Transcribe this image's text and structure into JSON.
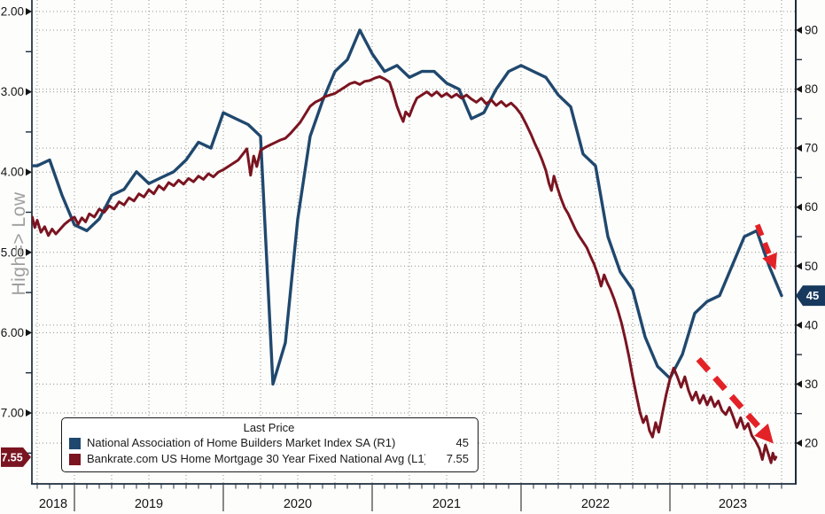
{
  "colors": {
    "nahb_line": "#20486e",
    "mortgage_line": "#7a1420",
    "arrow_red": "#e32227",
    "grid": "#8f8f8f",
    "axis_spine": "#1d2c3d",
    "tick_text": "#141414",
    "axis_title_gray": "#9e9e9e",
    "badge_nahb_bg": "#17395e",
    "badge_mortgage_bg": "#7a1420",
    "badge_text": "#ffffff",
    "background": "#fdfdfb"
  },
  "chart_data": {
    "type": "line",
    "title": "",
    "legend": {
      "title": "Last Price",
      "items": [
        {
          "label": "National Association of Home Builders Market Index SA  (R1)",
          "value": "45",
          "color": "#20486e"
        },
        {
          "label": "Bankrate.com US Home Mortgage 30 Year Fixed National Avg  (L1)",
          "value": "7.55",
          "color": "#7a1420"
        }
      ]
    },
    "x_axis": {
      "year_labels": [
        "2018",
        "2019",
        "2020",
        "2021",
        "2022",
        "2023"
      ],
      "visible_span": "Sep 2018 - Oct 2023"
    },
    "left_axis": {
      "title": "High=> Low",
      "inverted_display": true,
      "ticks": [
        "2.00",
        "3.00",
        "4.00",
        "5.00",
        "6.00",
        "7.00"
      ],
      "tick_values": [
        2,
        3,
        4,
        5,
        6,
        7
      ],
      "minor_tick_step": 0.5,
      "range": [
        1.95,
        7.9
      ],
      "last_price_badge": "7.55"
    },
    "right_axis": {
      "ticks": [
        90,
        80,
        70,
        60,
        50,
        40,
        30,
        20
      ],
      "minor_tick_step": 5,
      "range": [
        4,
        94
      ],
      "last_price_badge": "45"
    },
    "t_encoding": "t = months since 2018-01-01 (12.0 = 2019-01-01); monthly survey readings are plotted at the following month boundary",
    "series": [
      {
        "name": "National Association of Home Builders Market Index SA",
        "axis": "R1",
        "frequency": "monthly",
        "first_reading": "2018-08",
        "first_plot_t": 8,
        "last_price": 45,
        "values": [
          67,
          67,
          68,
          62,
          57,
          56,
          58,
          62,
          63,
          66,
          64,
          65,
          66,
          68,
          71,
          70,
          76,
          75,
          74,
          72,
          30,
          37,
          58,
          72,
          78,
          83,
          85,
          90,
          86,
          83,
          84,
          82,
          83,
          83,
          81,
          80,
          75,
          76,
          80,
          83,
          84,
          83,
          82,
          79,
          77,
          69,
          67,
          55,
          49,
          46,
          38,
          33,
          31,
          35,
          42,
          44,
          45,
          50,
          55,
          56,
          50,
          45
        ]
      },
      {
        "name": "Bankrate.com US Home Mortgage 30 Year Fixed National Avg",
        "axis": "L1",
        "frequency": "sub-monthly",
        "last_price": 7.55,
        "points": [
          [
            8.6,
            4.56
          ],
          [
            8.8,
            4.69
          ],
          [
            9.0,
            4.6
          ],
          [
            9.3,
            4.75
          ],
          [
            9.6,
            4.68
          ],
          [
            9.9,
            4.79
          ],
          [
            10.2,
            4.71
          ],
          [
            10.5,
            4.77
          ],
          [
            10.8,
            4.72
          ],
          [
            11.2,
            4.65
          ],
          [
            11.6,
            4.6
          ],
          [
            12.0,
            4.56
          ],
          [
            12.3,
            4.65
          ],
          [
            12.6,
            4.57
          ],
          [
            12.9,
            4.62
          ],
          [
            13.2,
            4.52
          ],
          [
            13.6,
            4.56
          ],
          [
            14.0,
            4.46
          ],
          [
            14.4,
            4.5
          ],
          [
            14.8,
            4.42
          ],
          [
            15.2,
            4.46
          ],
          [
            15.6,
            4.37
          ],
          [
            16.0,
            4.41
          ],
          [
            16.4,
            4.32
          ],
          [
            16.8,
            4.36
          ],
          [
            17.2,
            4.27
          ],
          [
            17.6,
            4.31
          ],
          [
            18.0,
            4.22
          ],
          [
            18.4,
            4.27
          ],
          [
            18.8,
            4.17
          ],
          [
            19.2,
            4.22
          ],
          [
            19.6,
            4.13
          ],
          [
            20.0,
            4.17
          ],
          [
            20.4,
            4.1
          ],
          [
            20.8,
            4.15
          ],
          [
            21.2,
            4.08
          ],
          [
            21.6,
            4.12
          ],
          [
            22.0,
            4.05
          ],
          [
            22.4,
            4.09
          ],
          [
            22.8,
            4.02
          ],
          [
            23.2,
            4.06
          ],
          [
            23.6,
            4.0
          ],
          [
            24.0,
            3.97
          ],
          [
            24.4,
            3.93
          ],
          [
            24.8,
            3.89
          ],
          [
            25.2,
            3.85
          ],
          [
            25.6,
            3.77
          ],
          [
            25.9,
            3.71
          ],
          [
            26.2,
            4.04
          ],
          [
            26.45,
            3.8
          ],
          [
            26.7,
            3.93
          ],
          [
            27.0,
            3.73
          ],
          [
            27.4,
            3.69
          ],
          [
            27.8,
            3.66
          ],
          [
            28.2,
            3.63
          ],
          [
            28.6,
            3.6
          ],
          [
            29.0,
            3.58
          ],
          [
            29.4,
            3.52
          ],
          [
            29.8,
            3.45
          ],
          [
            30.2,
            3.38
          ],
          [
            30.6,
            3.28
          ],
          [
            31.0,
            3.18
          ],
          [
            31.4,
            3.13
          ],
          [
            31.8,
            3.1
          ],
          [
            32.2,
            3.06
          ],
          [
            32.6,
            3.04
          ],
          [
            33.0,
            3.02
          ],
          [
            33.4,
            2.98
          ],
          [
            33.8,
            2.94
          ],
          [
            34.2,
            2.9
          ],
          [
            34.6,
            2.88
          ],
          [
            35.0,
            2.91
          ],
          [
            35.4,
            2.87
          ],
          [
            35.8,
            2.86
          ],
          [
            36.2,
            2.83
          ],
          [
            36.6,
            2.81
          ],
          [
            37.0,
            2.84
          ],
          [
            37.4,
            2.88
          ],
          [
            37.7,
            3.02
          ],
          [
            38.0,
            3.18
          ],
          [
            38.3,
            3.3
          ],
          [
            38.5,
            3.37
          ],
          [
            38.7,
            3.25
          ],
          [
            39.0,
            3.3
          ],
          [
            39.3,
            3.18
          ],
          [
            39.6,
            3.08
          ],
          [
            40.0,
            3.04
          ],
          [
            40.4,
            3.0
          ],
          [
            40.8,
            3.05
          ],
          [
            41.2,
            3.0
          ],
          [
            41.6,
            3.06
          ],
          [
            42.0,
            3.02
          ],
          [
            42.4,
            3.07
          ],
          [
            42.8,
            3.03
          ],
          [
            43.2,
            3.08
          ],
          [
            43.6,
            3.04
          ],
          [
            44.0,
            3.09
          ],
          [
            44.4,
            3.13
          ],
          [
            44.8,
            3.08
          ],
          [
            45.2,
            3.15
          ],
          [
            45.6,
            3.1
          ],
          [
            46.0,
            3.17
          ],
          [
            46.4,
            3.12
          ],
          [
            46.8,
            3.18
          ],
          [
            47.2,
            3.14
          ],
          [
            47.6,
            3.2
          ],
          [
            48.0,
            3.28
          ],
          [
            48.4,
            3.4
          ],
          [
            48.8,
            3.53
          ],
          [
            49.1,
            3.64
          ],
          [
            49.4,
            3.74
          ],
          [
            49.7,
            3.85
          ],
          [
            50.0,
            3.98
          ],
          [
            50.25,
            4.14
          ],
          [
            50.45,
            4.23
          ],
          [
            50.65,
            4.05
          ],
          [
            50.9,
            4.18
          ],
          [
            51.2,
            4.32
          ],
          [
            51.5,
            4.44
          ],
          [
            51.8,
            4.52
          ],
          [
            52.1,
            4.62
          ],
          [
            52.4,
            4.72
          ],
          [
            52.7,
            4.8
          ],
          [
            53.0,
            4.87
          ],
          [
            53.3,
            4.94
          ],
          [
            53.6,
            5.05
          ],
          [
            53.9,
            5.15
          ],
          [
            54.2,
            5.28
          ],
          [
            54.45,
            5.42
          ],
          [
            54.7,
            5.28
          ],
          [
            54.95,
            5.38
          ],
          [
            55.2,
            5.46
          ],
          [
            55.5,
            5.58
          ],
          [
            55.8,
            5.72
          ],
          [
            56.1,
            5.88
          ],
          [
            56.4,
            6.08
          ],
          [
            56.7,
            6.3
          ],
          [
            57.0,
            6.55
          ],
          [
            57.3,
            6.78
          ],
          [
            57.6,
            7.0
          ],
          [
            57.85,
            7.12
          ],
          [
            58.1,
            7.04
          ],
          [
            58.35,
            7.22
          ],
          [
            58.6,
            7.3
          ],
          [
            58.85,
            7.12
          ],
          [
            59.1,
            7.24
          ],
          [
            59.4,
            7.0
          ],
          [
            59.7,
            6.77
          ],
          [
            60.0,
            6.58
          ],
          [
            60.3,
            6.44
          ],
          [
            60.6,
            6.55
          ],
          [
            60.9,
            6.68
          ],
          [
            61.2,
            6.55
          ],
          [
            61.5,
            6.72
          ],
          [
            61.8,
            6.84
          ],
          [
            62.1,
            6.74
          ],
          [
            62.4,
            6.88
          ],
          [
            62.7,
            6.78
          ],
          [
            63.0,
            6.9
          ],
          [
            63.3,
            6.8
          ],
          [
            63.6,
            6.92
          ],
          [
            63.9,
            6.85
          ],
          [
            64.2,
            6.97
          ],
          [
            64.5,
            7.02
          ],
          [
            64.8,
            6.93
          ],
          [
            65.1,
            7.05
          ],
          [
            65.4,
            7.18
          ],
          [
            65.7,
            7.06
          ],
          [
            66.0,
            7.2
          ],
          [
            66.3,
            7.13
          ],
          [
            66.6,
            7.28
          ],
          [
            66.9,
            7.35
          ],
          [
            67.2,
            7.44
          ],
          [
            67.45,
            7.58
          ],
          [
            67.7,
            7.4
          ],
          [
            67.95,
            7.52
          ],
          [
            68.15,
            7.62
          ],
          [
            68.3,
            7.5
          ],
          [
            68.45,
            7.58
          ],
          [
            68.55,
            7.55
          ]
        ]
      }
    ],
    "annotations": {
      "arrows": [
        {
          "axis": "R1",
          "from": [
            67.05,
            57.0
          ],
          "to": [
            68.35,
            50.2
          ],
          "style": "dashed",
          "meaning": "builder sentiment rolling over"
        },
        {
          "axis": "L1",
          "from": [
            62.3,
            6.33
          ],
          "to": [
            68.0,
            7.32
          ],
          "style": "dashed",
          "meaning": "mortgage rate surging"
        }
      ]
    }
  }
}
